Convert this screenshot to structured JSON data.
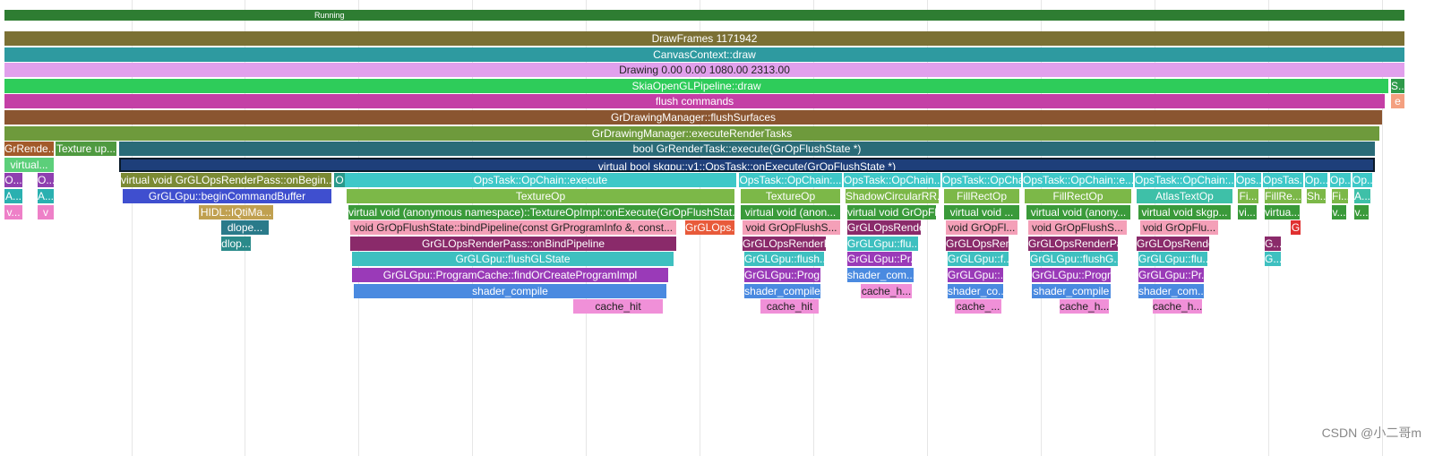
{
  "track": {
    "running": "Running"
  },
  "rows": [
    [
      "DrawFrames 1171942"
    ],
    [
      "CanvasContext::draw"
    ],
    [
      "Drawing  0.00  0.00 1080.00 2313.00"
    ],
    [
      "SkiaOpenGLPipeline::draw",
      "S..."
    ],
    [
      "flush commands",
      "e"
    ],
    [
      "GrDrawingManager::flushSurfaces"
    ],
    [
      "GrDrawingManager::executeRenderTasks"
    ],
    [
      "GrRende...",
      "Texture up...",
      "bool GrRenderTask::execute(GrOpFlushState *)"
    ],
    [
      "virtual...",
      "virtual bool skgpu::v1::OpsTask::onExecute(GrOpFlushState *)"
    ],
    [
      "O...",
      "O...",
      "virtual void GrGLOpsRenderPass::onBegin...",
      "O",
      "OpsTask::OpChain::execute",
      "OpsTask::OpChain:...",
      "OpsTask::OpChain...",
      "OpsTask::OpCha...",
      "OpsTask::OpChain::e...",
      "OpsTask::OpChain:...",
      "Ops...",
      "OpsTas...",
      "Op...",
      "Op...",
      "Op..."
    ],
    [
      "A...",
      "A...",
      "GrGLGpu::beginCommandBuffer",
      "TextureOp",
      "TextureOp",
      "ShadowCircularRR...",
      "FillRectOp",
      "FillRectOp",
      "AtlasTextOp",
      "Fi...",
      "FillRe...",
      "Sh...",
      "Fi...",
      "A..."
    ],
    [
      "v...",
      "v",
      "HIDL::IQtiMa...",
      "virtual void (anonymous namespace)::TextureOpImpl::onExecute(GrOpFlushStat...",
      "virtual void (anon...",
      "virtual void GrOpFlu...",
      "virtual void ...",
      "virtual void (anony...",
      "virtual void skgp...",
      "vi...",
      "virtua...",
      "v...",
      "v..."
    ],
    [
      "dlope...",
      "void GrOpFlushState::bindPipeline(const GrProgramInfo &, const...",
      "GrGLOps...",
      "void GrOpFlushS...",
      "GrGLOpsRende...",
      "void GrOpFl...",
      "void GrOpFlushS...",
      "void GrOpFlu...",
      "G"
    ],
    [
      "dlop...",
      "GrGLOpsRenderPass::onBindPipeline",
      "GrGLOpsRenderP...",
      "GrGLGpu::flu...",
      "GrGLOpsRen...",
      "GrGLOpsRenderPa...",
      "GrGLOpsRende...",
      "G..."
    ],
    [
      "GrGLGpu::flushGLState",
      "GrGLGpu::flush...",
      "GrGLGpu::Pr...",
      "GrGLGpu::f...",
      "GrGLGpu::flushG...",
      "GrGLGpu::flu...",
      "G..."
    ],
    [
      "GrGLGpu::ProgramCache::findOrCreateProgramImpl",
      "GrGLGpu::Prog...",
      "shader_com...",
      "GrGLGpu::...",
      "GrGLGpu::Progr...",
      "GrGLGpu::Pr..."
    ],
    [
      "shader_compile",
      "shader_compile",
      "cache_h...",
      "shader_co...",
      "shader_compile",
      "shader_com..."
    ],
    [
      "cache_hit",
      "cache_hit",
      "cache_...",
      "cache_h...",
      "cache_h..."
    ]
  ],
  "watermark": "CSDN @小二哥m"
}
